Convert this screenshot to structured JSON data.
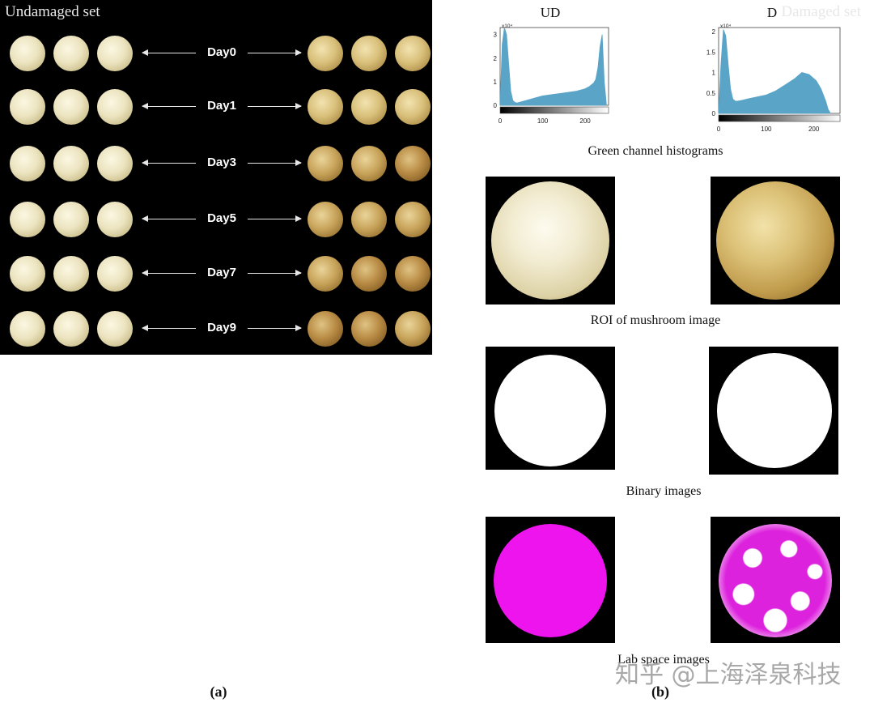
{
  "panel_a": {
    "header_left": "Undamaged set",
    "header_right": "Damaged set",
    "rows": [
      {
        "day": "Day0"
      },
      {
        "day": "Day1"
      },
      {
        "day": "Day3"
      },
      {
        "day": "Day5"
      },
      {
        "day": "Day7"
      },
      {
        "day": "Day9"
      }
    ],
    "caption": "(a)"
  },
  "panel_b": {
    "caption": "(b)",
    "histograms_caption": "Green channel histograms",
    "roi_caption": "ROI of mushroom image",
    "binary_caption": "Binary images",
    "lab_caption": "Lab space images"
  },
  "chart_data": [
    {
      "type": "area",
      "title": "UD",
      "y_exponent_label": "x10⁴",
      "x_ticks": [
        0,
        100,
        200
      ],
      "y_ticks": [
        0,
        1,
        2,
        3
      ],
      "xlim": [
        0,
        255
      ],
      "ylim": [
        0,
        3.3
      ],
      "x": [
        0,
        5,
        10,
        15,
        20,
        25,
        30,
        35,
        40,
        50,
        60,
        80,
        100,
        120,
        140,
        160,
        180,
        200,
        210,
        220,
        225,
        230,
        235,
        240,
        245,
        250
      ],
      "values": [
        0,
        2.6,
        3.3,
        3.0,
        1.8,
        0.6,
        0.2,
        0.12,
        0.1,
        0.15,
        0.2,
        0.3,
        0.4,
        0.45,
        0.5,
        0.55,
        0.6,
        0.7,
        0.8,
        0.95,
        1.1,
        1.6,
        2.5,
        3.0,
        1.0,
        0
      ],
      "color": "#5aa4c8"
    },
    {
      "type": "area",
      "title": "D",
      "y_exponent_label": "x10⁴",
      "x_ticks": [
        0,
        100,
        200
      ],
      "y_ticks": [
        0,
        0.5,
        1,
        1.5,
        2
      ],
      "xlim": [
        0,
        255
      ],
      "ylim": [
        0,
        2.1
      ],
      "x": [
        0,
        5,
        10,
        15,
        20,
        25,
        30,
        35,
        40,
        50,
        60,
        80,
        100,
        120,
        140,
        160,
        175,
        190,
        205,
        215,
        225,
        230,
        235
      ],
      "values": [
        0,
        1.2,
        2.05,
        1.9,
        1.2,
        0.6,
        0.35,
        0.3,
        0.3,
        0.32,
        0.35,
        0.4,
        0.45,
        0.55,
        0.7,
        0.85,
        1.0,
        0.95,
        0.8,
        0.6,
        0.3,
        0.1,
        0
      ],
      "color": "#5aa4c8"
    }
  ],
  "watermark": "知乎 @上海泽泉科技"
}
